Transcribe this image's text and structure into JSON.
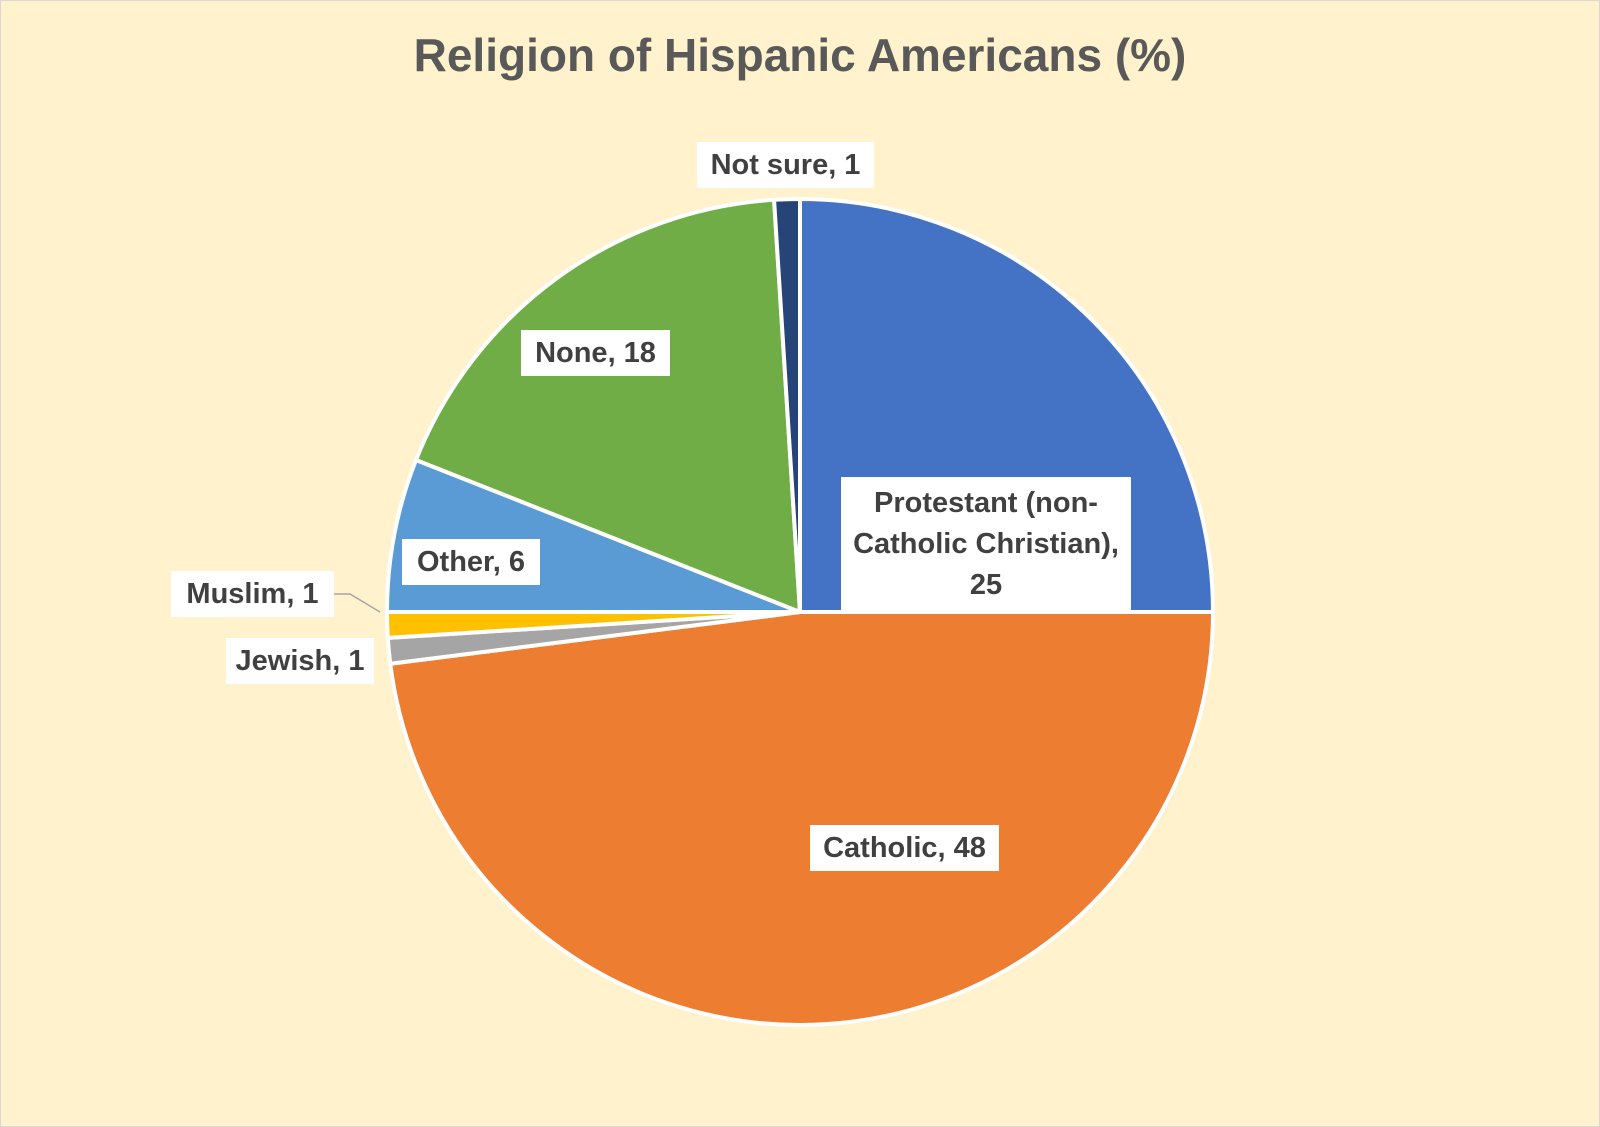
{
  "chart_data": {
    "type": "pie",
    "title": "Religion of Hispanic Americans (%)",
    "slices": [
      {
        "name": "Protestant (non-Catholic Christian)",
        "value": 25,
        "color": "#4472C4",
        "label": "Protestant (non-Catholic Christian), 25"
      },
      {
        "name": "Catholic",
        "value": 48,
        "color": "#ED7D31",
        "label": "Catholic, 48"
      },
      {
        "name": "Jewish",
        "value": 1,
        "color": "#A5A5A5",
        "label": "Jewish, 1"
      },
      {
        "name": "Muslim",
        "value": 1,
        "color": "#FFC000",
        "label": "Muslim, 1"
      },
      {
        "name": "Other",
        "value": 6,
        "color": "#5B9BD5",
        "label": "Other, 6"
      },
      {
        "name": "None",
        "value": 18,
        "color": "#70AD47",
        "label": "None, 18"
      },
      {
        "name": "Not sure",
        "value": 1,
        "color": "#264478",
        "label": "Not sure, 1"
      }
    ],
    "start_angle": "12 o'clock",
    "direction": "clockwise",
    "background_color": "#FFF2CC",
    "title_color": "#595959",
    "label_text_color": "#404040"
  }
}
